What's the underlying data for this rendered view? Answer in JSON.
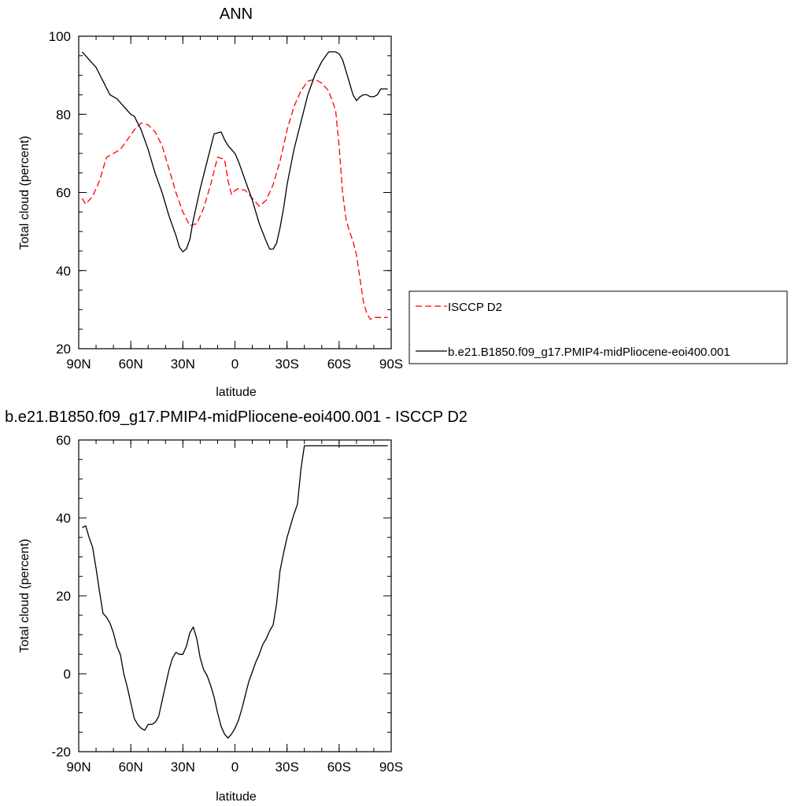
{
  "chart_data": [
    {
      "type": "line",
      "title": "ANN",
      "xlabel": "latitude",
      "ylabel": "Total cloud (percent)",
      "xlim": [
        -90,
        90
      ],
      "ylim": [
        20,
        100
      ],
      "xticks": [
        -90,
        -60,
        -30,
        0,
        30,
        60,
        90
      ],
      "xtick_labels": [
        "90N",
        "60N",
        "30N",
        "0",
        "30S",
        "60S",
        "90S"
      ],
      "yticks": [
        20,
        40,
        60,
        80,
        100
      ],
      "ytick_labels": [
        "20",
        "40",
        "60",
        "80",
        "100"
      ],
      "grid": false,
      "legend_placement": "right",
      "series": [
        {
          "name": "ISCCP D2",
          "color": "#ff0000",
          "dash": "dashed",
          "x": [
            -88,
            -86,
            -82,
            -78,
            -74,
            -70,
            -66,
            -62,
            -58,
            -54,
            -50,
            -46,
            -42,
            -38,
            -34,
            -30,
            -26,
            -22,
            -18,
            -14,
            -10,
            -6,
            -4,
            -2,
            0,
            2,
            6,
            10,
            14,
            18,
            22,
            26,
            30,
            34,
            38,
            42,
            46,
            50,
            54,
            58,
            60,
            62,
            64,
            66,
            68,
            70,
            72,
            74,
            76,
            78,
            80,
            82,
            84,
            86,
            88
          ],
          "y": [
            58.5,
            57,
            59,
            63,
            69,
            70,
            71,
            73.5,
            76,
            77.8,
            77.3,
            75.5,
            72,
            66,
            60,
            55,
            51.5,
            52,
            56,
            62,
            69,
            68.5,
            63,
            59.5,
            60.5,
            61,
            60.5,
            58.5,
            56.5,
            58,
            62,
            68,
            76,
            82,
            86,
            88.5,
            89,
            88,
            86,
            81,
            72,
            60,
            53,
            50,
            47.5,
            44,
            38,
            32,
            29,
            27.5,
            28,
            28,
            28,
            28,
            28
          ]
        },
        {
          "name": "b.e21.B1850.f09_g17.PMIP4-midPliocene-eoi400.001",
          "color": "#000000",
          "dash": "solid",
          "x": [
            -88,
            -84,
            -80,
            -76,
            -72,
            -68,
            -64,
            -60,
            -58,
            -54,
            -50,
            -46,
            -42,
            -38,
            -34,
            -32,
            -30,
            -28,
            -26,
            -24,
            -20,
            -16,
            -12,
            -8,
            -6,
            -4,
            -2,
            0,
            2,
            6,
            10,
            14,
            18,
            20,
            22,
            24,
            26,
            28,
            30,
            34,
            38,
            42,
            46,
            50,
            54,
            58,
            60,
            62,
            64,
            66,
            68,
            70,
            72,
            74,
            76,
            78,
            80,
            82,
            84,
            86,
            88
          ],
          "y": [
            96,
            94,
            92,
            88.5,
            85,
            84,
            82,
            80,
            79.5,
            76,
            71,
            65,
            60,
            54,
            49,
            46,
            44.8,
            45.5,
            48,
            53,
            61,
            68,
            75,
            75.5,
            73.5,
            72,
            71,
            70,
            68,
            63,
            58,
            52,
            47.5,
            45.5,
            45.5,
            47,
            51,
            56,
            62,
            71,
            78,
            85,
            90,
            93.5,
            96,
            96,
            95.5,
            94,
            91,
            88,
            85,
            83.5,
            84.5,
            85,
            85,
            84.5,
            84.5,
            85,
            86.5,
            86.5,
            86.5
          ]
        }
      ]
    },
    {
      "type": "line",
      "title": "b.e21.B1850.f09_g17.PMIP4-midPliocene-eoi400.001 - ISCCP D2",
      "xlabel": "latitude",
      "ylabel": "Total cloud (percent)",
      "xlim": [
        -90,
        90
      ],
      "ylim": [
        -20,
        60
      ],
      "xticks": [
        -90,
        -60,
        -30,
        0,
        30,
        60,
        90
      ],
      "xtick_labels": [
        "90N",
        "60N",
        "30N",
        "0",
        "30S",
        "60S",
        "90S"
      ],
      "yticks": [
        -20,
        0,
        20,
        40,
        60
      ],
      "ytick_labels": [
        "-20",
        "0",
        "20",
        "40",
        "60"
      ],
      "grid": false,
      "series": [
        {
          "color": "#000000",
          "dash": "solid",
          "x": [
            -88,
            -86,
            -84,
            -82,
            -80,
            -78,
            -76,
            -74,
            -72,
            -70,
            -68,
            -66,
            -64,
            -62,
            -60,
            -58,
            -56,
            -54,
            -52,
            -50,
            -48,
            -46,
            -44,
            -42,
            -40,
            -38,
            -36,
            -34,
            -32,
            -30,
            -28,
            -26,
            -24,
            -22,
            -20,
            -18,
            -16,
            -14,
            -12,
            -10,
            -8,
            -6,
            -4,
            -2,
            0,
            2,
            4,
            6,
            8,
            10,
            12,
            14,
            16,
            18,
            20,
            22,
            24,
            26,
            28,
            30,
            32,
            34,
            36,
            38,
            40,
            42,
            44,
            46,
            48,
            50,
            52,
            54,
            56,
            58,
            60,
            62,
            64,
            66,
            68,
            70,
            72,
            74,
            76,
            78,
            80,
            82,
            84,
            86,
            88
          ],
          "y": [
            37.5,
            38,
            35,
            32.5,
            27,
            21,
            15.5,
            14.5,
            13,
            10.5,
            7,
            5,
            0,
            -3.5,
            -7.5,
            -11.5,
            -13,
            -14,
            -14.5,
            -13,
            -13,
            -12.5,
            -11,
            -7,
            -3,
            1,
            4,
            5.5,
            5,
            5,
            7,
            10.5,
            12,
            9,
            4,
            1,
            -0.5,
            -3,
            -6,
            -10,
            -13.5,
            -15.5,
            -16.5,
            -15.5,
            -14,
            -12,
            -9,
            -5.5,
            -2,
            0.5,
            3,
            5,
            7.5,
            9,
            11,
            12.5,
            18,
            26.5,
            31,
            35,
            38,
            41,
            43.5,
            52.5,
            58.5,
            58.5,
            58.5,
            58.5,
            58.5,
            58.5,
            58.5,
            58.5,
            58.5,
            58.5,
            58.5,
            58.5,
            58.5,
            58.5,
            58.5,
            58.5,
            58.5,
            58.5,
            58.5,
            58.5,
            58.5,
            58.5,
            58.5,
            58.5,
            58.5
          ]
        }
      ]
    }
  ]
}
